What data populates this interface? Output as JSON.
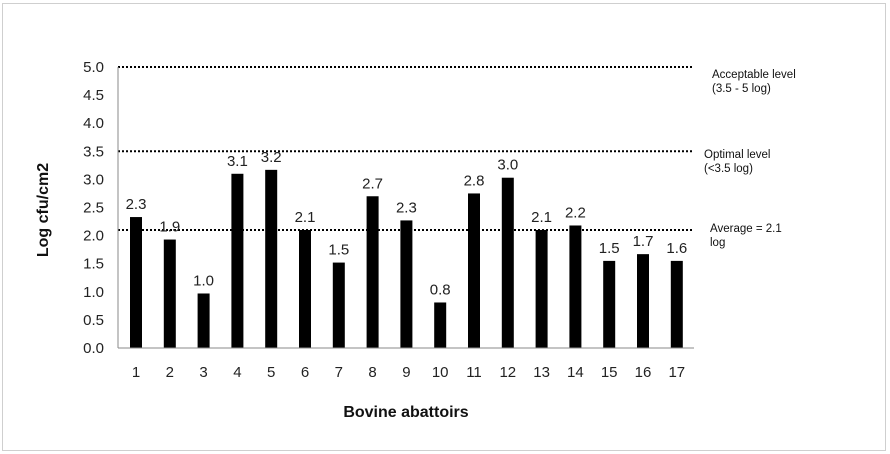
{
  "chart_data": {
    "type": "bar",
    "title": "",
    "xlabel": "Bovine abattoirs",
    "ylabel": "Log cfu/cm2",
    "ylim": [
      0,
      5
    ],
    "yticks": [
      "0.0",
      "0.5",
      "1.0",
      "1.5",
      "2.0",
      "2.5",
      "3.0",
      "3.5",
      "4.0",
      "4.5",
      "5.0"
    ],
    "categories": [
      "1",
      "2",
      "3",
      "4",
      "5",
      "6",
      "7",
      "8",
      "9",
      "10",
      "11",
      "12",
      "13",
      "14",
      "15",
      "16",
      "17"
    ],
    "values": [
      2.33,
      1.93,
      0.97,
      3.1,
      3.17,
      2.1,
      1.52,
      2.7,
      2.27,
      0.81,
      2.75,
      3.03,
      2.1,
      2.18,
      1.55,
      1.67,
      1.55
    ],
    "data_labels": [
      "2.3",
      "1.9",
      "1.0",
      "3.1",
      "3.2",
      "2.1",
      "1.5",
      "2.7",
      "2.3",
      "0.8",
      "2.8",
      "3.0",
      "2.1",
      "2.2",
      "1.5",
      "1.7",
      "1.6"
    ],
    "bar_color": "#000000",
    "grid": false,
    "reference_lines": [
      {
        "value": 5.0,
        "label_lines": [
          "Acceptable level",
          "(3.5 - 5 log)"
        ]
      },
      {
        "value": 3.5,
        "label_lines": [
          "Optimal level",
          "(<3.5 log)"
        ]
      },
      {
        "value": 2.1,
        "label_lines": [
          "Average = 2.1",
          "log"
        ]
      }
    ]
  }
}
